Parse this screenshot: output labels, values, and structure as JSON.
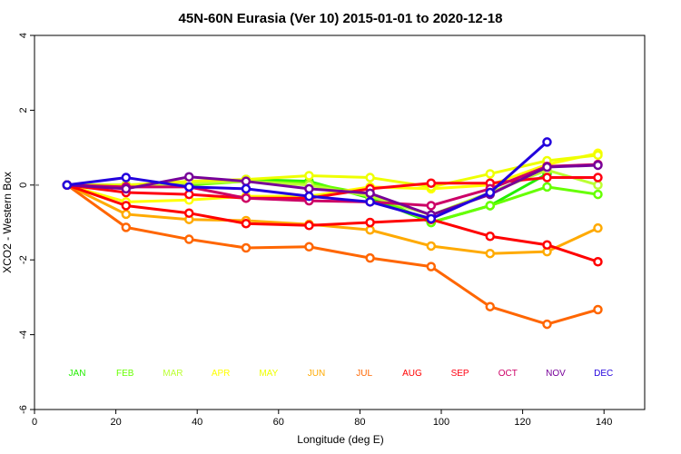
{
  "chart_data": {
    "type": "line",
    "title": "45N-60N Eurasia (Ver 10)   2015-01-01 to 2020-12-18",
    "xlabel": "Longitude (deg E)",
    "ylabel": "XCO2 - Western Box",
    "xlim": [
      0,
      150
    ],
    "ylim": [
      -6,
      4
    ],
    "xticks": [
      0,
      20,
      40,
      60,
      80,
      100,
      120,
      140
    ],
    "yticks": [
      -6,
      -4,
      -2,
      0,
      2,
      4
    ],
    "x": [
      8,
      22.5,
      38,
      52,
      67.5,
      82.5,
      97.5,
      112,
      126,
      138.5
    ],
    "series": [
      {
        "name": "JAN",
        "color": "#22ee00",
        "values": [
          0,
          0.0,
          0.0,
          0.15,
          0.1,
          -0.35,
          -1.0,
          -0.55,
          0.3,
          null
        ]
      },
      {
        "name": "FEB",
        "color": "#66ff00",
        "values": [
          0,
          0.0,
          0.0,
          0.1,
          0.05,
          -0.25,
          -1.0,
          -0.55,
          -0.05,
          -0.25
        ]
      },
      {
        "name": "MAR",
        "color": "#bbff33",
        "values": [
          0,
          -0.05,
          0.05,
          0.1,
          0.0,
          -0.3,
          -0.8,
          -0.2,
          0.4,
          0.0
        ]
      },
      {
        "name": "APR",
        "color": "#ffff00",
        "values": [
          0,
          -0.45,
          -0.4,
          -0.3,
          -0.3,
          -0.05,
          -0.1,
          0.0,
          0.55,
          0.85
        ]
      },
      {
        "name": "MAY",
        "color": "#eeff00",
        "values": [
          0,
          0.0,
          0.1,
          0.15,
          0.25,
          0.2,
          -0.05,
          0.3,
          0.65,
          0.8
        ]
      },
      {
        "name": "JUN",
        "color": "#ffaa00",
        "values": [
          0,
          -0.78,
          -0.92,
          -0.95,
          -1.05,
          -1.2,
          -1.63,
          -1.83,
          -1.78,
          -1.15
        ]
      },
      {
        "name": "JUL",
        "color": "#ff6600",
        "values": [
          0,
          -1.13,
          -1.45,
          -1.68,
          -1.65,
          -1.95,
          -2.18,
          -3.25,
          -3.72,
          -3.33
        ]
      },
      {
        "name": "AUG",
        "color": "#ff0000",
        "values": [
          0,
          -0.55,
          -0.75,
          -1.03,
          -1.08,
          -1.0,
          -0.92,
          -1.37,
          -1.6,
          -2.05
        ]
      },
      {
        "name": "SEP",
        "color": "#ff0011",
        "values": [
          0,
          -0.2,
          -0.25,
          -0.35,
          -0.35,
          -0.1,
          0.05,
          0.05,
          0.2,
          0.2
        ]
      },
      {
        "name": "OCT",
        "color": "#cc0066",
        "values": [
          0,
          -0.05,
          -0.05,
          -0.35,
          -0.42,
          -0.45,
          -0.55,
          -0.1,
          0.5,
          0.55
        ]
      },
      {
        "name": "NOV",
        "color": "#770099",
        "values": [
          0,
          -0.1,
          0.22,
          0.1,
          -0.1,
          -0.22,
          -0.8,
          -0.25,
          0.48,
          0.53
        ]
      },
      {
        "name": "DEC",
        "color": "#2200dd",
        "values": [
          0,
          0.2,
          -0.05,
          -0.1,
          -0.3,
          -0.45,
          -0.9,
          -0.2,
          1.15,
          null
        ]
      }
    ],
    "grid": false
  }
}
